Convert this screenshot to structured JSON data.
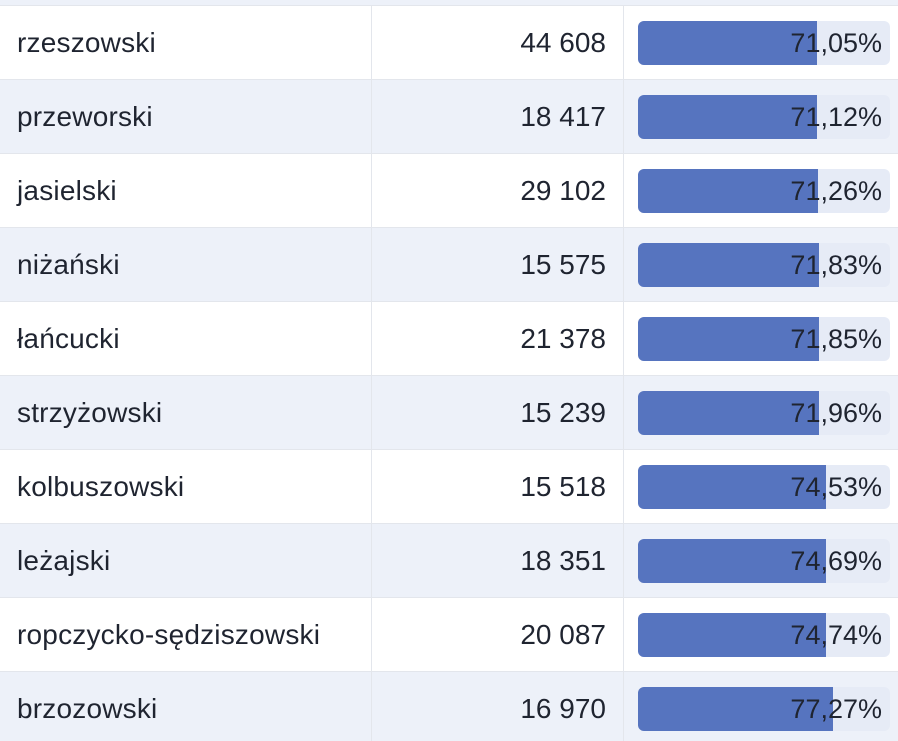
{
  "table": {
    "bar_color": "#5674bf",
    "track_color": "#e6ebf6",
    "stripe_color": "#edf1f9",
    "rows": [
      {
        "name": "rzeszowski",
        "count": "44 608",
        "percent_label": "71,05%",
        "percent": 71.05
      },
      {
        "name": "przeworski",
        "count": "18 417",
        "percent_label": "71,12%",
        "percent": 71.12
      },
      {
        "name": "jasielski",
        "count": "29 102",
        "percent_label": "71,26%",
        "percent": 71.26
      },
      {
        "name": "niżański",
        "count": "15 575",
        "percent_label": "71,83%",
        "percent": 71.83
      },
      {
        "name": "łańcucki",
        "count": "21 378",
        "percent_label": "71,85%",
        "percent": 71.85
      },
      {
        "name": "strzyżowski",
        "count": "15 239",
        "percent_label": "71,96%",
        "percent": 71.96
      },
      {
        "name": "kolbuszowski",
        "count": "15 518",
        "percent_label": "74,53%",
        "percent": 74.53
      },
      {
        "name": "leżajski",
        "count": "18 351",
        "percent_label": "74,69%",
        "percent": 74.69
      },
      {
        "name": "ropczycko-sędziszowski",
        "count": "20 087",
        "percent_label": "74,74%",
        "percent": 74.74
      },
      {
        "name": "brzozowski",
        "count": "16 970",
        "percent_label": "77,27%",
        "percent": 77.27
      }
    ]
  }
}
